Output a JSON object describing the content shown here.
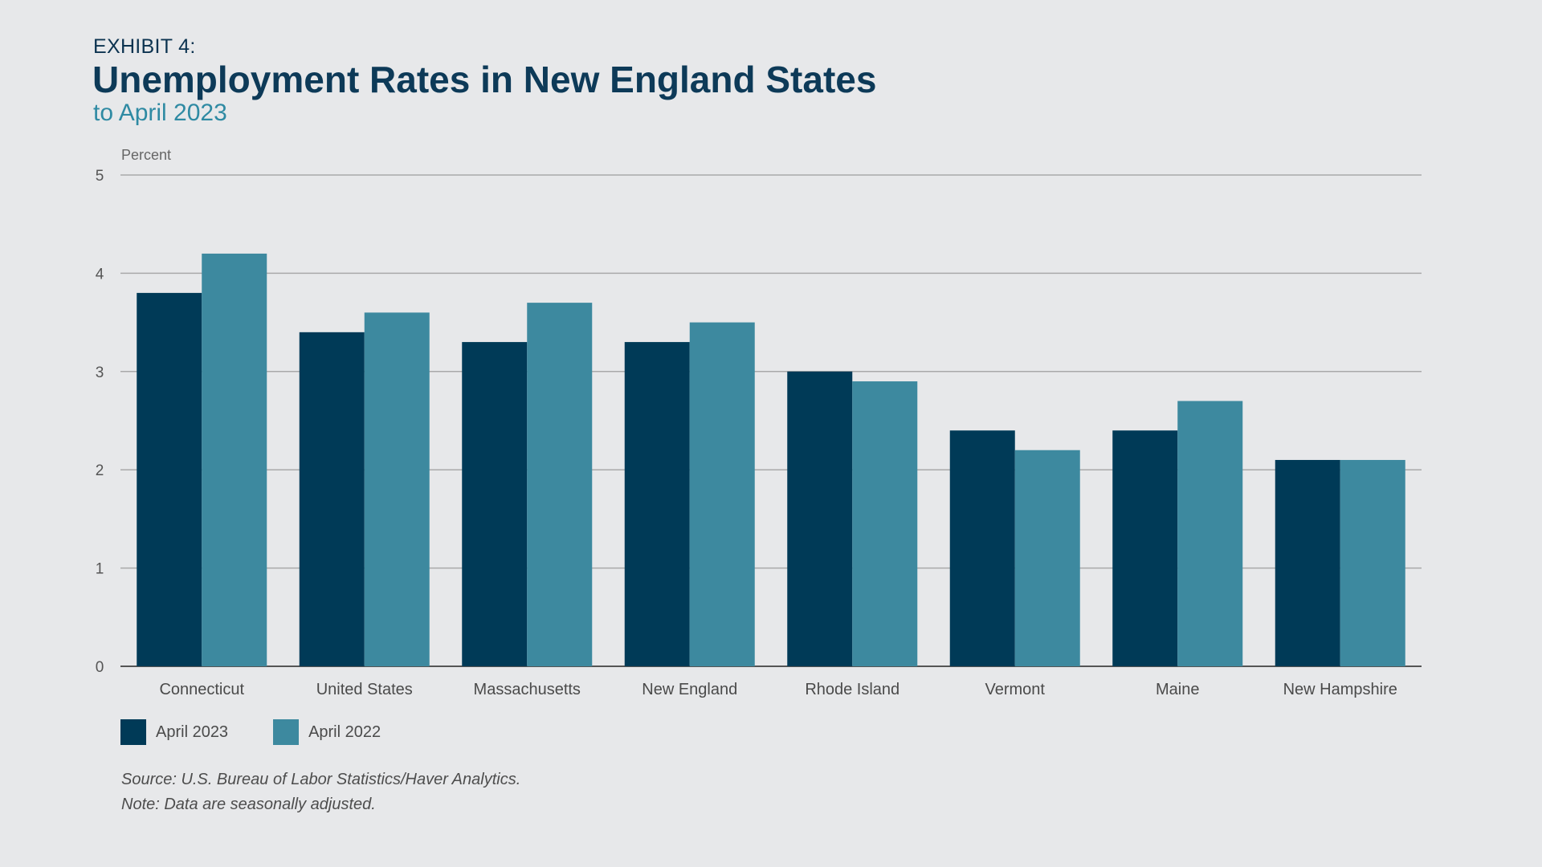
{
  "header": {
    "exhibit": "EXHIBIT 4:",
    "title": "Unemployment Rates in New England States",
    "subtitle": "to April 2023"
  },
  "chart_data": {
    "type": "bar",
    "ylabel": "Percent",
    "ylim": [
      0,
      5
    ],
    "yticks": [
      0,
      1,
      2,
      3,
      4,
      5
    ],
    "grid": true,
    "legend_position": "bottom-left",
    "categories": [
      "Connecticut",
      "United States",
      "Massachusetts",
      "New England",
      "Rhode Island",
      "Vermont",
      "Maine",
      "New Hampshire"
    ],
    "series": [
      {
        "name": "April 2023",
        "color": "#003a57",
        "values": [
          3.8,
          3.4,
          3.3,
          3.3,
          3.0,
          2.4,
          2.4,
          2.1
        ]
      },
      {
        "name": "April 2022",
        "color": "#3d899f",
        "values": [
          4.2,
          3.6,
          3.7,
          3.5,
          2.9,
          2.2,
          2.7,
          2.1
        ]
      }
    ]
  },
  "footer": {
    "source": "Source: U.S. Bureau of Labor Statistics/Haver Analytics.",
    "note": "Note: Data are seasonally adjusted."
  }
}
